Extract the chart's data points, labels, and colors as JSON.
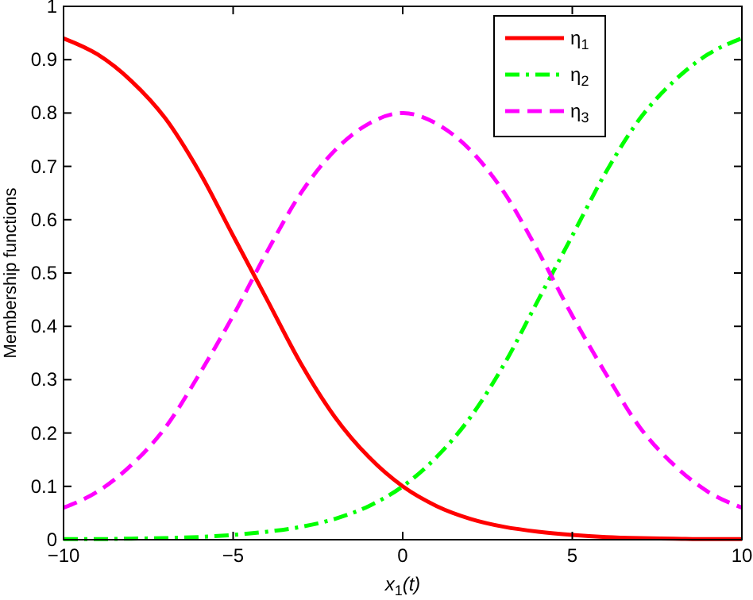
{
  "chart_data": {
    "type": "line",
    "xlabel": "x$_{1}$(t)",
    "ylabel": "Membership functions",
    "x": [
      -10,
      -9,
      -8,
      -7,
      -6,
      -5,
      -4,
      -3,
      -2,
      -1,
      0,
      1,
      2,
      3,
      4,
      5,
      6,
      7,
      8,
      9,
      10
    ],
    "series": [
      {
        "name": "η$_{1}$",
        "color": "#ff0000",
        "line_style": "solid",
        "values": [
          0.94,
          0.91,
          0.86,
          0.79,
          0.69,
          0.57,
          0.45,
          0.33,
          0.23,
          0.155,
          0.1,
          0.063,
          0.039,
          0.024,
          0.015,
          0.009,
          0.005,
          0.003,
          0.002,
          0.001,
          0.001
        ]
      },
      {
        "name": "η$_{2}$",
        "color": "#00ff00",
        "line_style": "dashdot",
        "values": [
          0.001,
          0.001,
          0.002,
          0.003,
          0.005,
          0.009,
          0.015,
          0.024,
          0.039,
          0.063,
          0.1,
          0.155,
          0.23,
          0.33,
          0.45,
          0.57,
          0.69,
          0.79,
          0.86,
          0.91,
          0.94
        ]
      },
      {
        "name": "η$_{3}$",
        "color": "#ff00ff",
        "line_style": "dashed",
        "values": [
          0.06,
          0.09,
          0.14,
          0.21,
          0.31,
          0.42,
          0.54,
          0.65,
          0.73,
          0.78,
          0.8,
          0.78,
          0.73,
          0.65,
          0.54,
          0.42,
          0.31,
          0.21,
          0.14,
          0.09,
          0.06
        ]
      }
    ],
    "xlim": [
      -10,
      10
    ],
    "xticks": [
      {
        "value": -10,
        "label": "−10"
      },
      {
        "value": -5,
        "label": "−5"
      },
      0,
      5,
      10
    ],
    "ylim": [
      0,
      1
    ],
    "yticks": [
      0,
      0.1,
      0.2,
      0.3,
      0.4,
      0.5,
      0.6,
      0.7,
      0.8,
      0.9,
      1
    ],
    "grid": false,
    "legend": "top right",
    "marker": "none"
  }
}
